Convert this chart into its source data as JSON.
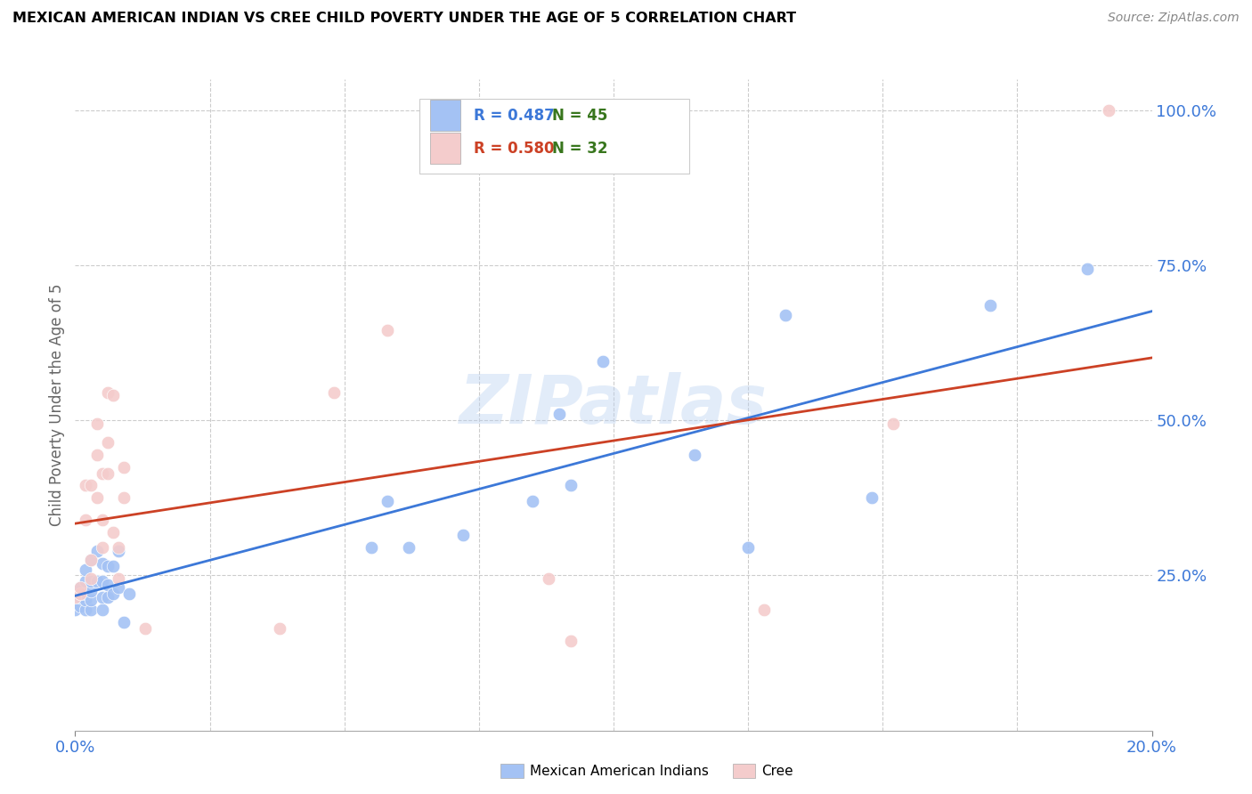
{
  "title": "MEXICAN AMERICAN INDIAN VS CREE CHILD POVERTY UNDER THE AGE OF 5 CORRELATION CHART",
  "source": "Source: ZipAtlas.com",
  "ylabel": "Child Poverty Under the Age of 5",
  "watermark": "ZIPatlas",
  "blue_color": "#a4c2f4",
  "pink_color": "#f4cccc",
  "blue_line_color": "#3c78d8",
  "pink_line_color": "#cc4125",
  "ytick_color": "#3c78d8",
  "xtick_color": "#3c78d8",
  "legend_blue_r_color": "#3c78d8",
  "legend_n_color": "#38761d",
  "legend_pink_r_color": "#cc4125",
  "blue_R": 0.487,
  "pink_R": 0.58,
  "blue_N": 45,
  "pink_N": 32,
  "blue_scatter_x": [
    0.0,
    0.001,
    0.001,
    0.001,
    0.001,
    0.001,
    0.002,
    0.002,
    0.002,
    0.002,
    0.002,
    0.003,
    0.003,
    0.003,
    0.003,
    0.003,
    0.004,
    0.004,
    0.005,
    0.005,
    0.005,
    0.005,
    0.006,
    0.006,
    0.006,
    0.007,
    0.007,
    0.008,
    0.008,
    0.009,
    0.01,
    0.055,
    0.058,
    0.062,
    0.072,
    0.085,
    0.09,
    0.092,
    0.098,
    0.115,
    0.125,
    0.132,
    0.148,
    0.17,
    0.188
  ],
  "blue_scatter_y": [
    0.195,
    0.2,
    0.215,
    0.22,
    0.225,
    0.23,
    0.195,
    0.21,
    0.22,
    0.24,
    0.26,
    0.195,
    0.21,
    0.225,
    0.24,
    0.275,
    0.24,
    0.29,
    0.195,
    0.215,
    0.24,
    0.27,
    0.215,
    0.235,
    0.265,
    0.22,
    0.265,
    0.23,
    0.29,
    0.175,
    0.22,
    0.295,
    0.37,
    0.295,
    0.315,
    0.37,
    0.51,
    0.395,
    0.595,
    0.445,
    0.295,
    0.67,
    0.375,
    0.685,
    0.745
  ],
  "pink_scatter_x": [
    0.0,
    0.001,
    0.001,
    0.002,
    0.002,
    0.003,
    0.003,
    0.003,
    0.004,
    0.004,
    0.004,
    0.005,
    0.005,
    0.005,
    0.006,
    0.006,
    0.006,
    0.007,
    0.007,
    0.008,
    0.008,
    0.009,
    0.009,
    0.013,
    0.038,
    0.048,
    0.058,
    0.088,
    0.092,
    0.128,
    0.152,
    0.192
  ],
  "pink_scatter_y": [
    0.215,
    0.22,
    0.23,
    0.34,
    0.395,
    0.245,
    0.395,
    0.275,
    0.445,
    0.495,
    0.375,
    0.295,
    0.34,
    0.415,
    0.415,
    0.465,
    0.545,
    0.32,
    0.54,
    0.245,
    0.295,
    0.375,
    0.425,
    0.165,
    0.165,
    0.545,
    0.645,
    0.245,
    0.145,
    0.195,
    0.495,
    1.0
  ],
  "xlim": [
    0.0,
    0.2
  ],
  "ylim": [
    0.0,
    1.05
  ],
  "ytick_vals": [
    0.25,
    0.5,
    0.75,
    1.0
  ],
  "ytick_labels": [
    "25.0%",
    "50.0%",
    "75.0%",
    "100.0%"
  ],
  "xtick_vals": [
    0.0,
    0.2
  ],
  "xtick_labels": [
    "0.0%",
    "20.0%"
  ]
}
